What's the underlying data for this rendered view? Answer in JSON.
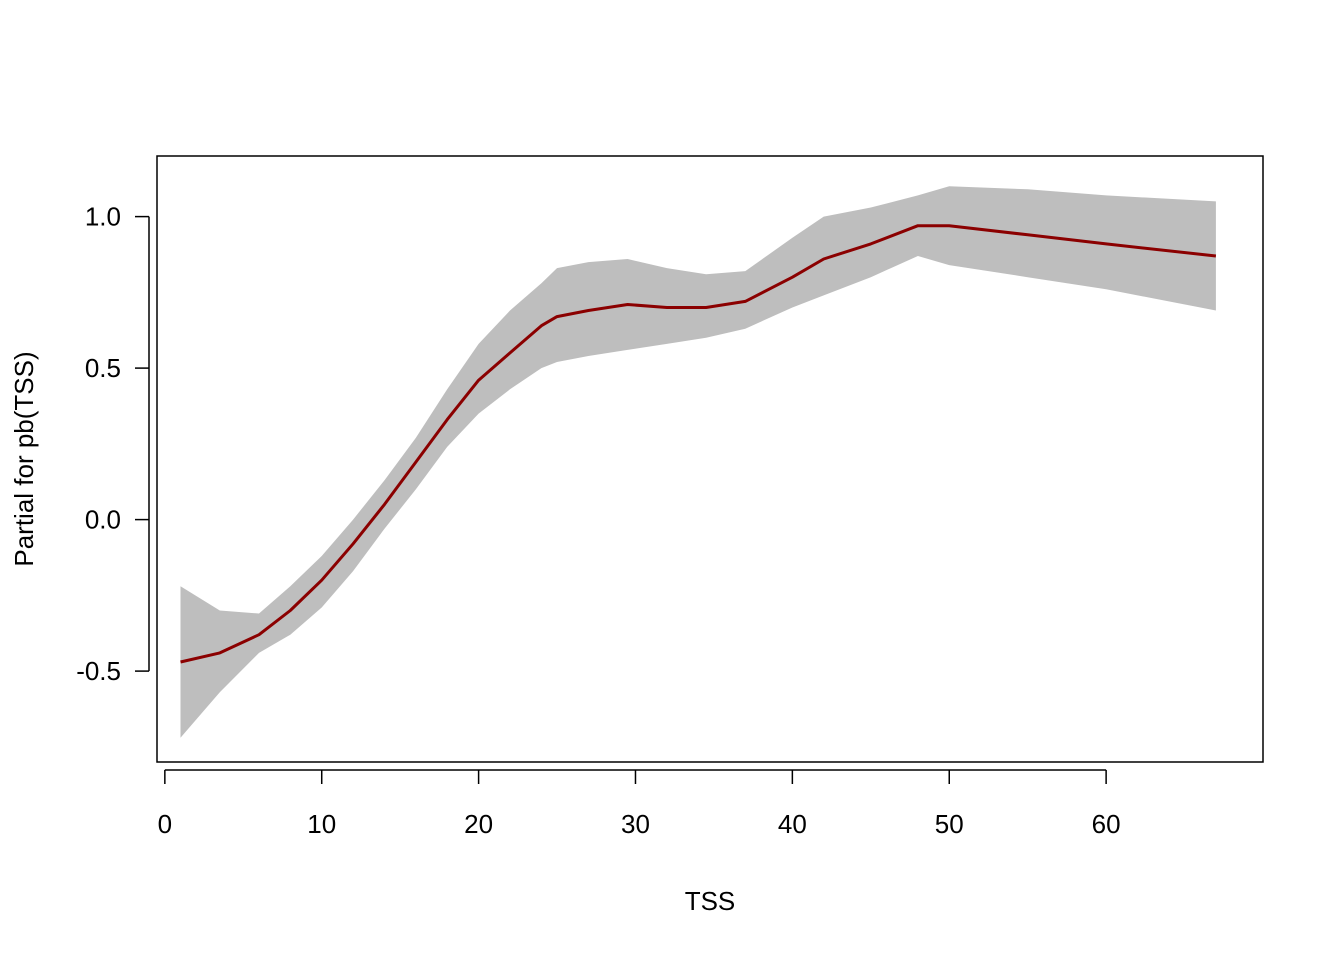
{
  "chart_data": {
    "type": "line",
    "title": "",
    "xlabel": "TSS",
    "ylabel": "Partial for pb(TSS)",
    "xlim": [
      -0.5,
      70
    ],
    "ylim": [
      -0.8,
      1.2
    ],
    "x_ticks": [
      0,
      10,
      20,
      30,
      40,
      50,
      60
    ],
    "x_tick_labels": [
      "0",
      "10",
      "20",
      "30",
      "40",
      "50",
      "60"
    ],
    "y_ticks": [
      -0.5,
      0.0,
      0.5,
      1.0
    ],
    "y_tick_labels": [
      "-0.5",
      "0.0",
      "0.5",
      "1.0"
    ],
    "grid": false,
    "legend": "none",
    "colors": {
      "line": "#8B0000",
      "band": "#BEBEBE",
      "axis": "#000000"
    },
    "series": [
      {
        "x": [
          1,
          3.5,
          6,
          8,
          10,
          12,
          14,
          16,
          18,
          20,
          22,
          24,
          25,
          27,
          29.5,
          32,
          34.5,
          37,
          40,
          42,
          45,
          48,
          50,
          55,
          60,
          67
        ],
        "y": [
          -0.47,
          -0.44,
          -0.38,
          -0.3,
          -0.2,
          -0.08,
          0.05,
          0.19,
          0.33,
          0.46,
          0.55,
          0.64,
          0.67,
          0.69,
          0.71,
          0.7,
          0.7,
          0.72,
          0.8,
          0.86,
          0.91,
          0.97,
          0.97,
          0.94,
          0.91,
          0.87
        ],
        "lower": [
          -0.72,
          -0.57,
          -0.44,
          -0.38,
          -0.29,
          -0.17,
          -0.03,
          0.1,
          0.24,
          0.35,
          0.43,
          0.5,
          0.52,
          0.54,
          0.56,
          0.58,
          0.6,
          0.63,
          0.7,
          0.74,
          0.8,
          0.87,
          0.84,
          0.8,
          0.76,
          0.69
        ],
        "upper": [
          -0.22,
          -0.3,
          -0.31,
          -0.22,
          -0.12,
          0.0,
          0.13,
          0.27,
          0.43,
          0.58,
          0.69,
          0.78,
          0.83,
          0.85,
          0.86,
          0.83,
          0.81,
          0.82,
          0.93,
          1.0,
          1.03,
          1.07,
          1.1,
          1.09,
          1.07,
          1.05
        ]
      }
    ]
  }
}
